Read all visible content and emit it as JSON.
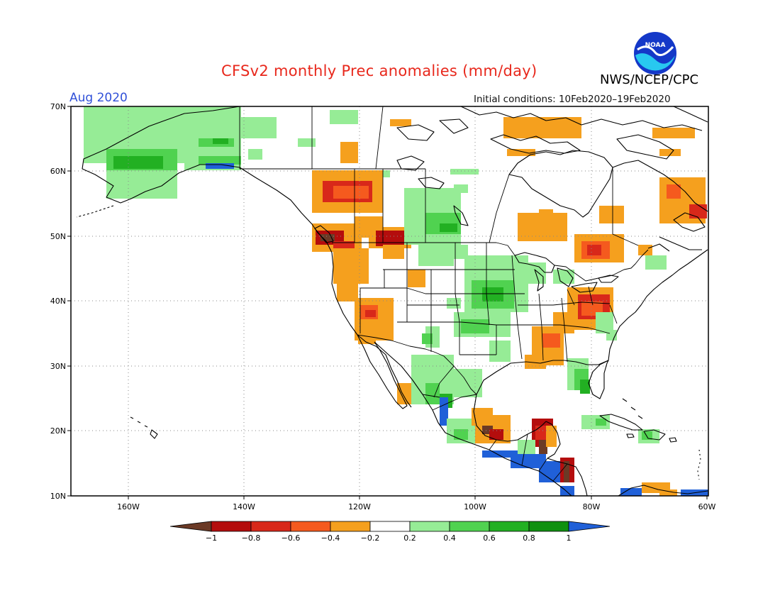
{
  "header": {
    "title": "CFSv2 monthly Prec anomalies (mm/day)",
    "agency": "NWS/NCEP/CPC",
    "valid_month": "Aug 2020",
    "initial_conditions": "Initial conditions: 10Feb2020–19Feb2020",
    "logo_text": "NOAA"
  },
  "map": {
    "lat_labels": [
      "70N",
      "60N",
      "50N",
      "40N",
      "30N",
      "20N",
      "10N"
    ],
    "lon_labels": [
      "160W",
      "140W",
      "120W",
      "100W",
      "80W",
      "60W"
    ]
  },
  "colorbar": {
    "labels": [
      "−1",
      "−0.8",
      "−0.6",
      "−0.4",
      "−0.2",
      "0.2",
      "0.4",
      "0.6",
      "0.8",
      "1"
    ],
    "colors": [
      "#6b3a26",
      "#b40d0d",
      "#d8281a",
      "#f55a1e",
      "#f5a01e",
      "#ffffff",
      "#96ec96",
      "#50d250",
      "#22b022",
      "#109010",
      "#2060d8"
    ]
  },
  "legend_colors": {
    "very_dry": "#6b3a26",
    "dry_strong": "#b40d0d",
    "dry": "#d8281a",
    "dry_mod": "#f55a1e",
    "dry_light": "#f5a01e",
    "wet_light": "#96ec96",
    "wet_mod": "#50d250",
    "wet": "#22b022",
    "wet_strong": "#109010",
    "very_wet": "#2060d8"
  }
}
